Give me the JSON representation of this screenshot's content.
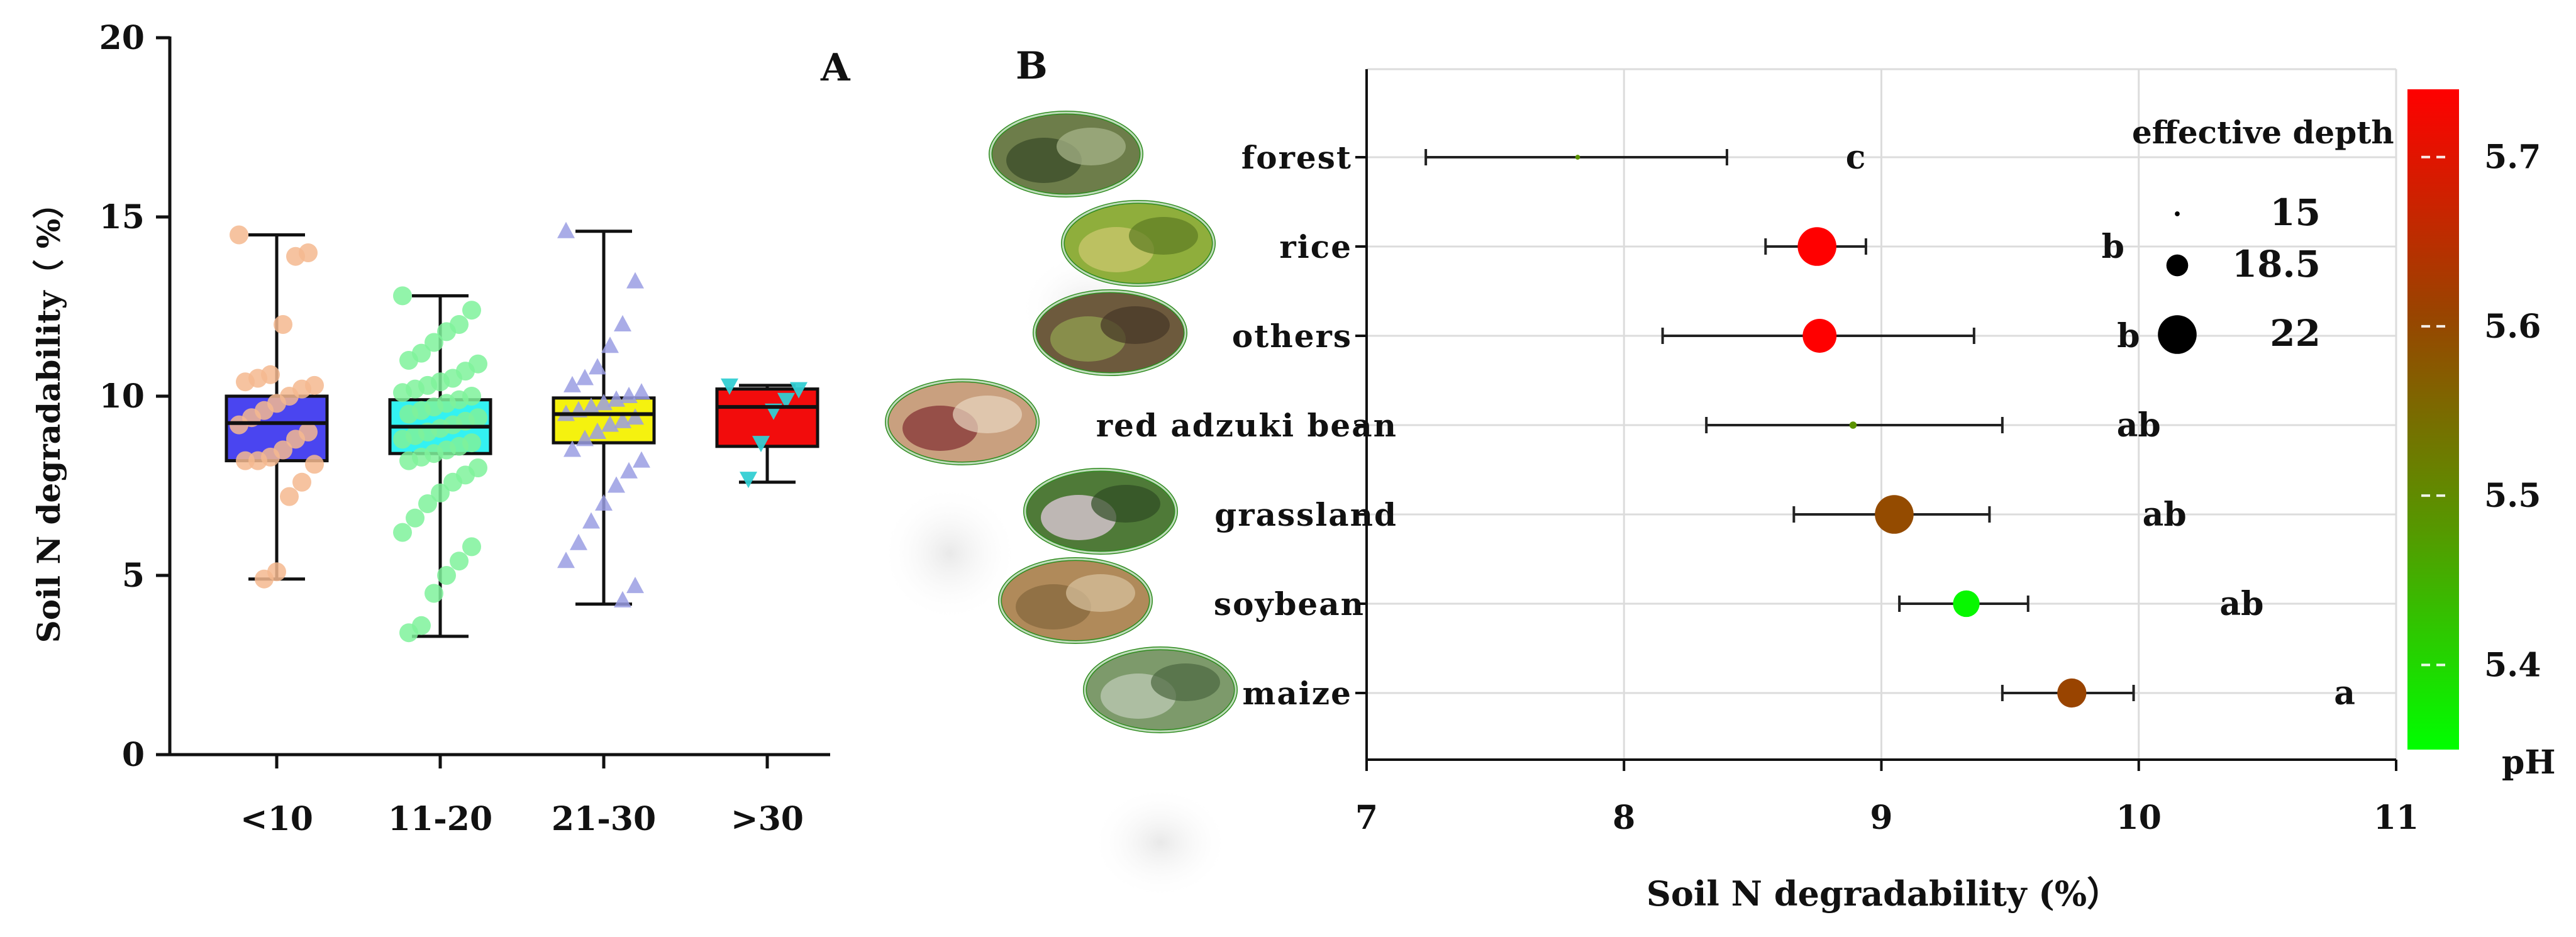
{
  "chart_data": [
    {
      "panel": "A",
      "type": "box",
      "ylabel": "Soil N degradability（ %）",
      "ylim": [
        0,
        20
      ],
      "yticks": [
        0,
        5,
        10,
        15,
        20
      ],
      "categories": [
        "<10",
        "11-20",
        "21-30",
        ">30"
      ],
      "box_colors": [
        "#4a45f0",
        "#33f2f2",
        "#f5f20f",
        "#f20c0c"
      ],
      "point_colors": [
        "#f5b98f",
        "#7ff29b",
        "#9a9ee3",
        "#33cfd3"
      ],
      "point_markers": [
        "circle",
        "circle",
        "triangle-up",
        "triangle-down"
      ],
      "boxes": [
        {
          "min": 4.9,
          "q1": 8.2,
          "median": 9.25,
          "q3": 10.0,
          "max": 14.5
        },
        {
          "min": 3.3,
          "q1": 8.4,
          "median": 9.15,
          "q3": 9.9,
          "max": 12.8
        },
        {
          "min": 4.2,
          "q1": 8.7,
          "median": 9.5,
          "q3": 9.95,
          "max": 14.6
        },
        {
          "min": 7.6,
          "q1": 8.6,
          "median": 9.7,
          "q3": 10.2,
          "max": 10.3
        }
      ],
      "points": [
        [
          14.5,
          14.0,
          13.9,
          12.0,
          10.6,
          10.5,
          10.4,
          10.3,
          10.2,
          10.0,
          9.8,
          9.6,
          9.4,
          9.2,
          9.0,
          8.8,
          8.5,
          8.3,
          8.2,
          8.2,
          8.1,
          7.6,
          7.2,
          5.1,
          4.9
        ],
        [
          12.8,
          12.4,
          12.0,
          11.8,
          11.5,
          11.2,
          11.0,
          10.9,
          10.7,
          10.5,
          10.4,
          10.3,
          10.2,
          10.1,
          10.0,
          9.9,
          9.8,
          9.7,
          9.6,
          9.5,
          9.4,
          9.3,
          9.2,
          9.1,
          9.0,
          8.9,
          8.8,
          8.7,
          8.6,
          8.5,
          8.4,
          8.3,
          8.2,
          8.0,
          7.8,
          7.6,
          7.3,
          7.0,
          6.6,
          6.2,
          5.8,
          5.4,
          5.0,
          4.5,
          3.6,
          3.4
        ],
        [
          14.6,
          13.2,
          12.0,
          11.4,
          10.8,
          10.5,
          10.3,
          10.1,
          10.0,
          9.9,
          9.8,
          9.7,
          9.6,
          9.5,
          9.4,
          9.3,
          9.2,
          9.0,
          8.8,
          8.5,
          8.2,
          7.9,
          7.5,
          7.0,
          6.5,
          5.9,
          5.4,
          4.7,
          4.3
        ],
        [
          10.3,
          10.2,
          9.9,
          9.6,
          8.7,
          7.7
        ]
      ]
    },
    {
      "panel": "B",
      "type": "scatter",
      "xlabel": "Soil N degradability (%）",
      "xlim": [
        7,
        11
      ],
      "xticks": [
        7,
        8,
        9,
        10,
        11
      ],
      "categories": [
        "forest",
        "rice",
        "others",
        "red adzuki bean",
        "grassland",
        "soybean",
        "maize"
      ],
      "mean": [
        7.82,
        8.75,
        8.76,
        8.89,
        9.05,
        9.33,
        9.74
      ],
      "error_low": [
        7.23,
        8.55,
        8.15,
        8.32,
        8.66,
        9.07,
        9.47
      ],
      "error_high": [
        8.4,
        8.94,
        9.36,
        9.47,
        9.42,
        9.57,
        9.98
      ],
      "effective_depth": [
        15.0,
        22.0,
        21.0,
        15.5,
        22.0,
        19.5,
        20.0
      ],
      "pH": [
        5.49,
        5.74,
        5.74,
        5.49,
        5.6,
        5.36,
        5.61
      ],
      "significance": [
        "c",
        "b",
        "b",
        "ab",
        "ab",
        "ab",
        "a"
      ],
      "significance_x": [
        8.9,
        9.9,
        9.96,
        10.0,
        10.1,
        10.4,
        10.8
      ],
      "size_legend": {
        "title": "effective depth",
        "values": [
          15,
          18.5,
          22
        ],
        "labels": [
          "15",
          "18.5",
          "22"
        ]
      },
      "colorbar": {
        "label": "pH",
        "range": [
          5.35,
          5.74
        ],
        "ticks": [
          5.4,
          5.5,
          5.6,
          5.7
        ],
        "tick_labels": [
          "5.4",
          "5.5",
          "5.6",
          "5.7"
        ],
        "colors": [
          "#00ff00",
          "#559900",
          "#994400",
          "#ff0000"
        ]
      }
    }
  ],
  "panel_labels": [
    "A",
    "B"
  ],
  "icon_names": [
    "forest-photo-icon",
    "rice-photo-icon",
    "others-photo-icon",
    "red-adzuki-bean-photo-icon",
    "grassland-photo-icon",
    "soybean-photo-icon",
    "maize-photo-icon"
  ]
}
